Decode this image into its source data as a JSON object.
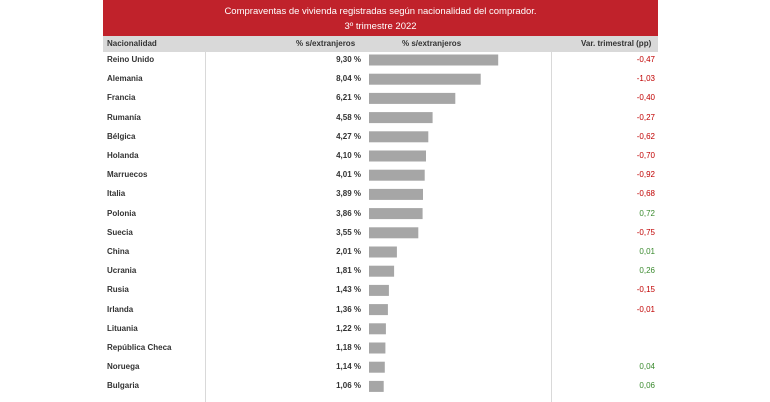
{
  "title_line1": "Compraventas de vivienda registradas según nacionalidad del comprador.",
  "title_line2": "3º trimestre 2022",
  "headers": {
    "nationality": "Nacionalidad",
    "pct": "% s/extranjeros",
    "pct_bar": "% s/extranjeros",
    "var": "Var. trimestral (pp)"
  },
  "colors": {
    "title_bg": "#c0222b",
    "bar": "#a6a6a6",
    "neg": "#c00000",
    "pos": "#3a8a2e"
  },
  "chart_data": {
    "type": "bar",
    "orientation": "horizontal",
    "categories": [
      "Reino Unido",
      "Alemania",
      "Francia",
      "Rumanía",
      "Bélgica",
      "Holanda",
      "Marruecos",
      "Italia",
      "Polonia",
      "Suecia",
      "China",
      "Ucrania",
      "Rusia",
      "Irlanda",
      "Lituania",
      "República Checa",
      "Noruega",
      "Bulgaria"
    ],
    "values": [
      9.3,
      8.04,
      6.21,
      4.58,
      4.27,
      4.1,
      4.01,
      3.89,
      3.86,
      3.55,
      2.01,
      1.81,
      1.43,
      1.36,
      1.22,
      1.18,
      1.14,
      1.06
    ],
    "value_labels": [
      "9,30 %",
      "8,04 %",
      "6,21 %",
      "4,58 %",
      "4,27 %",
      "4,10 %",
      "4,01 %",
      "3,89 %",
      "3,86 %",
      "3,55 %",
      "2,01 %",
      "1,81 %",
      "1,43 %",
      "1,36 %",
      "1,22 %",
      "1,18 %",
      "1,14 %",
      "1,06 %"
    ],
    "var_trimestral": [
      "-0,47",
      "-1,03",
      "-0,40",
      "-0,27",
      "-0,62",
      "-0,70",
      "-0,92",
      "-0,68",
      "0,72",
      "-0,75",
      "0,01",
      "0,26",
      "-0,15",
      "-0,01",
      "",
      "",
      "0,04",
      "0,06"
    ],
    "var_sign": [
      "neg",
      "neg",
      "neg",
      "neg",
      "neg",
      "neg",
      "neg",
      "neg",
      "pos",
      "neg",
      "pos",
      "pos",
      "neg",
      "neg",
      "",
      "",
      "pos",
      "pos"
    ],
    "xlim": [
      0,
      10
    ]
  }
}
